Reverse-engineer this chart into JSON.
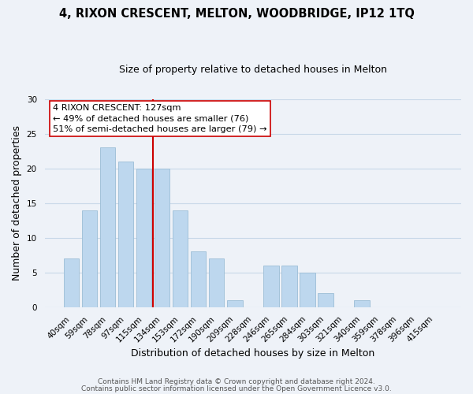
{
  "title1": "4, RIXON CRESCENT, MELTON, WOODBRIDGE, IP12 1TQ",
  "title2": "Size of property relative to detached houses in Melton",
  "xlabel": "Distribution of detached houses by size in Melton",
  "ylabel": "Number of detached properties",
  "bar_labels": [
    "40sqm",
    "59sqm",
    "78sqm",
    "97sqm",
    "115sqm",
    "134sqm",
    "153sqm",
    "172sqm",
    "190sqm",
    "209sqm",
    "228sqm",
    "246sqm",
    "265sqm",
    "284sqm",
    "303sqm",
    "321sqm",
    "340sqm",
    "359sqm",
    "378sqm",
    "396sqm",
    "415sqm"
  ],
  "bar_values": [
    7,
    14,
    23,
    21,
    20,
    20,
    14,
    8,
    7,
    1,
    0,
    6,
    6,
    5,
    2,
    0,
    1,
    0,
    0,
    0,
    0
  ],
  "bar_color": "#bdd7ee",
  "bar_edge_color": "#9bbdd6",
  "reference_line_color": "#cc0000",
  "reference_line_index": 4.5,
  "ylim": [
    0,
    30
  ],
  "yticks": [
    0,
    5,
    10,
    15,
    20,
    25,
    30
  ],
  "grid_color": "#c8d8e8",
  "background_color": "#eef2f8",
  "ann_line1": "4 RIXON CRESCENT: 127sqm",
  "ann_line2": "← 49% of detached houses are smaller (76)",
  "ann_line3": "51% of semi-detached houses are larger (79) →",
  "footer1": "Contains HM Land Registry data © Crown copyright and database right 2024.",
  "footer2": "Contains public sector information licensed under the Open Government Licence v3.0."
}
